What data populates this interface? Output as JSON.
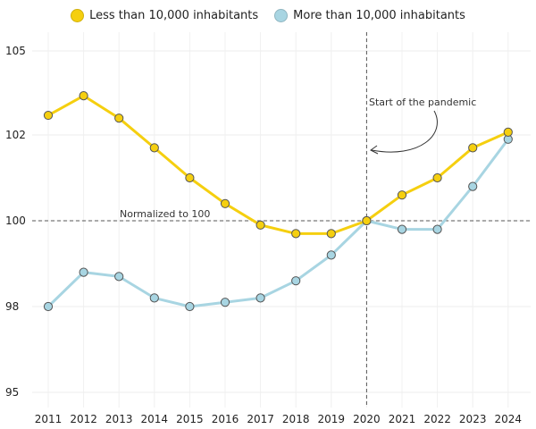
{
  "chart_data": {
    "type": "line",
    "title": "",
    "xlabel": "",
    "ylabel": "",
    "x": [
      "2011",
      "2012",
      "2013",
      "2014",
      "2015",
      "2016",
      "2017",
      "2018",
      "2019",
      "2020",
      "2021",
      "2022",
      "2023",
      "2024"
    ],
    "ylim": [
      95,
      105
    ],
    "y_ticks": [
      95,
      98,
      100,
      102,
      105
    ],
    "y_tick_labels": [
      "95",
      "98",
      "100",
      "102",
      "105"
    ],
    "series": [
      {
        "name": "Less than 10,000 inhabitants",
        "color": "#f5cf0f",
        "values": [
          102.7,
          103.4,
          102.6,
          101.7,
          101.0,
          100.4,
          99.9,
          99.7,
          99.7,
          100.0,
          100.6,
          101.0,
          101.7,
          102.1
        ]
      },
      {
        "name": "More than 10,000 inhabitants",
        "color": "#a8d5e2",
        "values": [
          98.0,
          98.8,
          98.7,
          98.2,
          98.0,
          98.1,
          98.2,
          98.6,
          99.2,
          100.0,
          99.8,
          99.8,
          100.8,
          101.9
        ]
      }
    ],
    "annotations": {
      "reference_line_value": 100,
      "reference_line_label": "Normalized to 100",
      "vertical_line_x": "2020",
      "vertical_line_label": "Start of the pandemic"
    },
    "grid": true,
    "legend_position": "top-center"
  }
}
